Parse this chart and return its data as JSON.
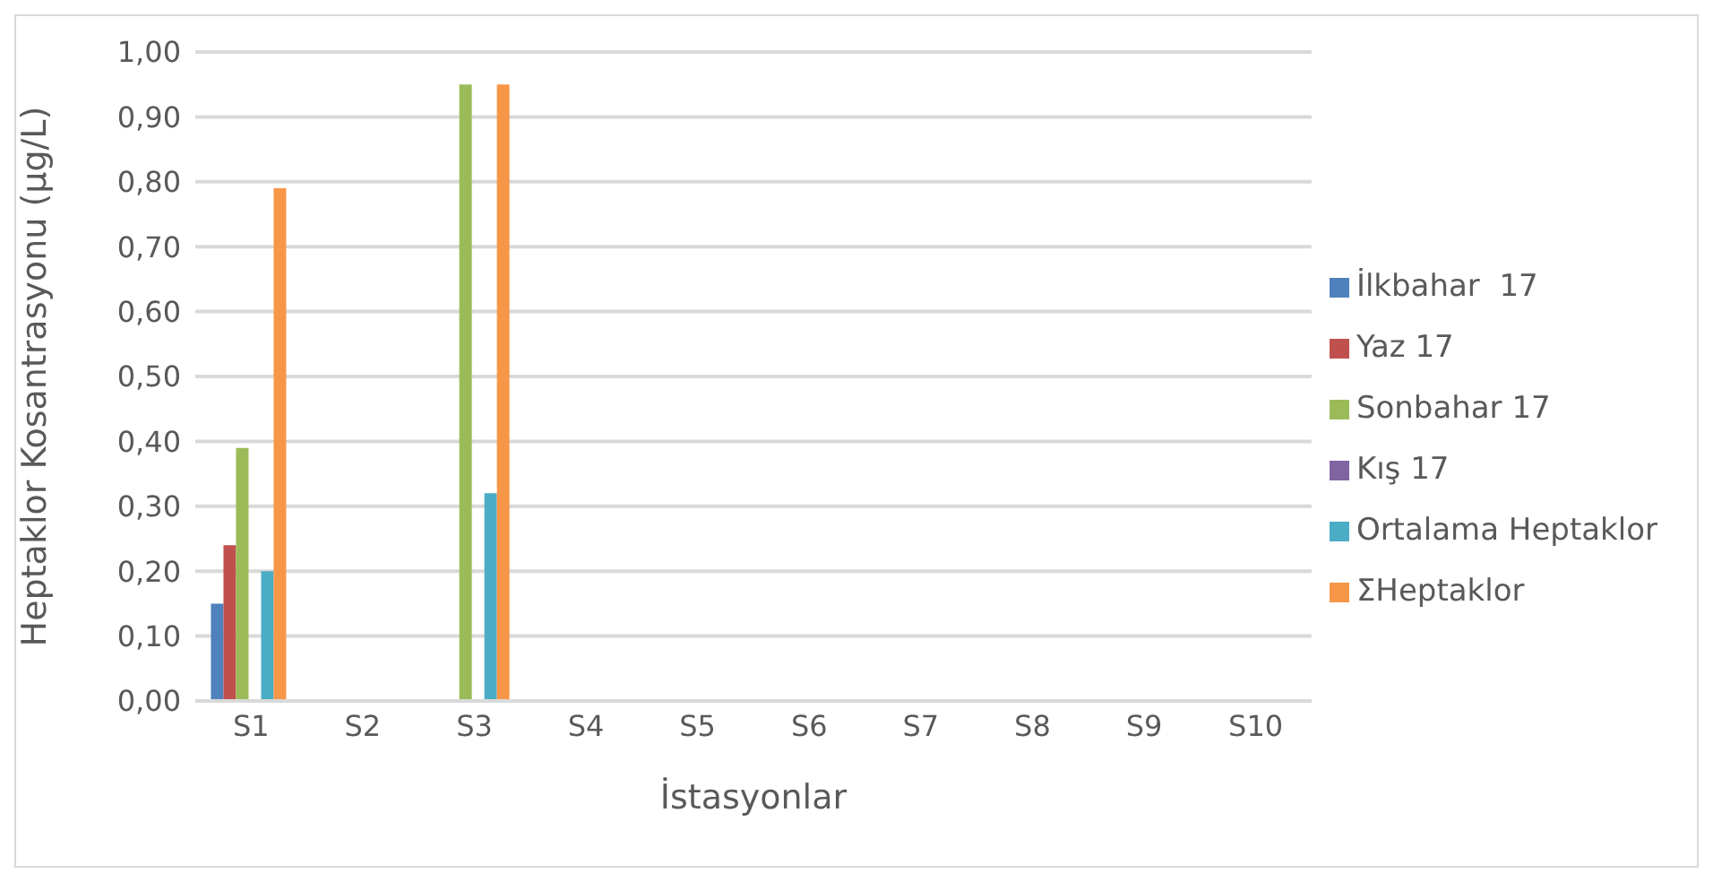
{
  "chart_data": {
    "type": "bar",
    "xlabel": "İstasyonlar",
    "ylabel": "Heptaklor Kosantrasyonu (µg/L)",
    "categories": [
      "S1",
      "S2",
      "S3",
      "S4",
      "S5",
      "S6",
      "S7",
      "S8",
      "S9",
      "S10"
    ],
    "series": [
      {
        "name": "İlkbahar  17",
        "color": "#4f81bd",
        "values": [
          0.15,
          0,
          0,
          0,
          0,
          0,
          0,
          0,
          0,
          0
        ]
      },
      {
        "name": "Yaz 17",
        "color": "#c0504d",
        "values": [
          0.24,
          0,
          0,
          0,
          0,
          0,
          0,
          0,
          0,
          0
        ]
      },
      {
        "name": "Sonbahar 17",
        "color": "#9bbb59",
        "values": [
          0.39,
          0,
          0.95,
          0,
          0,
          0,
          0,
          0,
          0,
          0
        ]
      },
      {
        "name": "Kış 17",
        "color": "#8064a2",
        "values": [
          0,
          0,
          0,
          0,
          0,
          0,
          0,
          0,
          0,
          0
        ]
      },
      {
        "name": "Ortalama Heptaklor",
        "color": "#4bacc6",
        "values": [
          0.2,
          0,
          0.32,
          0,
          0,
          0,
          0,
          0,
          0,
          0
        ]
      },
      {
        "name": "ΣHeptaklor",
        "color": "#f79646",
        "values": [
          0.79,
          0,
          0.95,
          0,
          0,
          0,
          0,
          0,
          0,
          0
        ]
      }
    ],
    "ylim": [
      0,
      1
    ],
    "yticks": [
      {
        "value": 0,
        "label": "0,00"
      },
      {
        "value": 0.1,
        "label": "0,10"
      },
      {
        "value": 0.2,
        "label": "0,20"
      },
      {
        "value": 0.3,
        "label": "0,30"
      },
      {
        "value": 0.4,
        "label": "0,40"
      },
      {
        "value": 0.5,
        "label": "0,50"
      },
      {
        "value": 0.6,
        "label": "0,60"
      },
      {
        "value": 0.7,
        "label": "0,70"
      },
      {
        "value": 0.8,
        "label": "0,80"
      },
      {
        "value": 0.9,
        "label": "0,90"
      },
      {
        "value": 1,
        "label": "1,00"
      }
    ],
    "grid": "y",
    "legend": "right"
  }
}
